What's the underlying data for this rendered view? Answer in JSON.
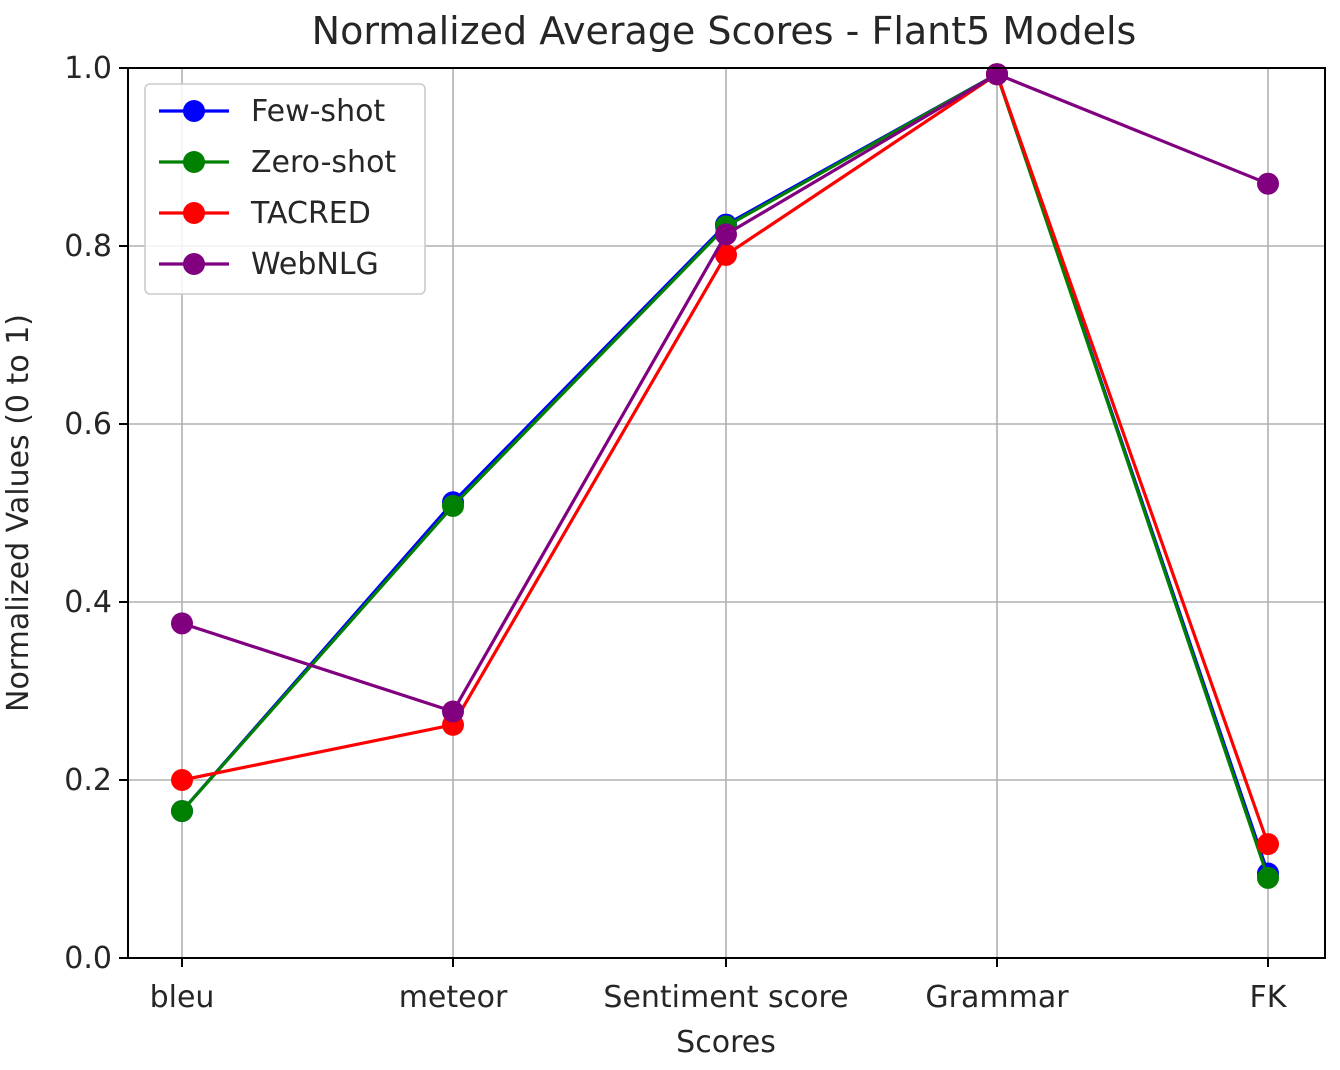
{
  "chart_data": {
    "type": "line",
    "title": "Normalized Average Scores - Flant5 Models",
    "xlabel": "Scores",
    "ylabel": "Normalized Values (0 to 1)",
    "categories": [
      "bleu",
      "meteor",
      "Sentiment score",
      "Grammar",
      "FK"
    ],
    "ylim": [
      0,
      1
    ],
    "yticks": [
      0.0,
      0.2,
      0.4,
      0.6,
      0.8,
      1.0
    ],
    "ytick_labels": [
      "0.0",
      "0.2",
      "0.4",
      "0.6",
      "0.8",
      "1.0"
    ],
    "grid": true,
    "legend_position": "top-left",
    "series": [
      {
        "name": "Few-shot",
        "color": "#0000ff",
        "values": [
          0.165,
          0.512,
          0.824,
          0.993,
          0.095
        ]
      },
      {
        "name": "Zero-shot",
        "color": "#008000",
        "values": [
          0.165,
          0.508,
          0.822,
          0.993,
          0.09
        ]
      },
      {
        "name": "TACRED",
        "color": "#ff0000",
        "values": [
          0.2,
          0.262,
          0.79,
          0.993,
          0.128
        ]
      },
      {
        "name": "WebNLG",
        "color": "#800080",
        "values": [
          0.376,
          0.277,
          0.813,
          0.993,
          0.87
        ]
      }
    ]
  }
}
